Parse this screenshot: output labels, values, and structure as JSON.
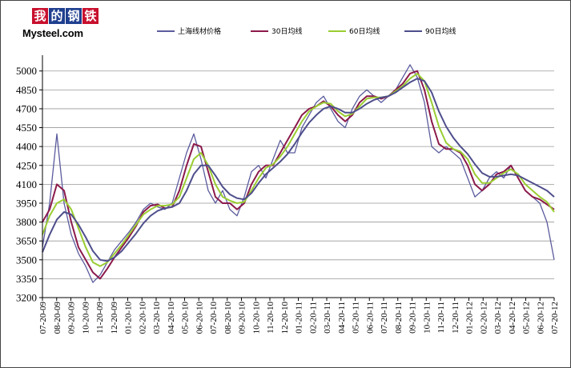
{
  "logo": {
    "chars": [
      "我",
      "的",
      "钢",
      "铁"
    ],
    "colors": [
      "#c8102e",
      "#1f3f8f",
      "#1f3f8f",
      "#c8102e"
    ],
    "brand": "Mysteel.com"
  },
  "chart_data": {
    "type": "line",
    "title": "",
    "xlabel": "",
    "ylabel": "",
    "ylim": [
      3200,
      5100
    ],
    "yticks": [
      3200,
      3350,
      3500,
      3650,
      3800,
      3950,
      4100,
      4250,
      4400,
      4550,
      4700,
      4850,
      5000
    ],
    "xticks": [
      "07-20-09",
      "08-20-09",
      "09-20-09",
      "10-20-09",
      "11-20-09",
      "12-20-09",
      "01-20-10",
      "02-20-10",
      "03-20-10",
      "04-20-10",
      "05-20-10",
      "06-20-10",
      "07-20-10",
      "08-20-10",
      "09-20-10",
      "10-20-10",
      "11-20-10",
      "12-20-10",
      "01-20-11",
      "02-20-11",
      "03-20-11",
      "04-20-11",
      "05-20-11",
      "06-20-11",
      "07-20-11",
      "08-20-11",
      "09-20-11",
      "10-20-11",
      "11-20-11",
      "12-20-11",
      "01-20-12",
      "02-20-12",
      "03-20-12",
      "04-20-12",
      "05-20-12",
      "06-20-12",
      "07-20-12"
    ],
    "grid": true,
    "legend_position": "top",
    "series": [
      {
        "name": "上海线材价格",
        "color": "#5b5b9e",
        "values": [
          3600,
          3950,
          4500,
          3950,
          3700,
          3550,
          3450,
          3320,
          3380,
          3480,
          3580,
          3650,
          3720,
          3800,
          3900,
          3950,
          3920,
          3900,
          3950,
          4150,
          4350,
          4500,
          4300,
          4050,
          3950,
          4050,
          3900,
          3850,
          4000,
          4200,
          4250,
          4150,
          4300,
          4450,
          4350,
          4350,
          4550,
          4650,
          4750,
          4800,
          4700,
          4600,
          4550,
          4700,
          4800,
          4850,
          4800,
          4750,
          4800,
          4850,
          4950,
          5050,
          4950,
          4750,
          4400,
          4350,
          4400,
          4350,
          4300,
          4150,
          4000,
          4050,
          4150,
          4200,
          4150,
          4250,
          4150,
          4050,
          4000,
          3950,
          3800,
          3500
        ]
      },
      {
        "name": "30日均线",
        "color": "#8b1a4b",
        "values": [
          3800,
          3900,
          4100,
          4050,
          3800,
          3600,
          3500,
          3400,
          3350,
          3430,
          3520,
          3600,
          3680,
          3770,
          3880,
          3930,
          3940,
          3910,
          3920,
          4050,
          4250,
          4420,
          4400,
          4200,
          4000,
          3950,
          3950,
          3900,
          3950,
          4100,
          4200,
          4250,
          4250,
          4350,
          4450,
          4550,
          4650,
          4700,
          4720,
          4760,
          4720,
          4650,
          4600,
          4650,
          4750,
          4800,
          4800,
          4780,
          4800,
          4850,
          4900,
          4980,
          5000,
          4850,
          4600,
          4420,
          4380,
          4380,
          4350,
          4250,
          4100,
          4050,
          4100,
          4180,
          4200,
          4250,
          4150,
          4050,
          4000,
          3980,
          3940,
          3900
        ]
      },
      {
        "name": "60日均线",
        "color": "#9acd32",
        "values": [
          3700,
          3850,
          3950,
          3980,
          3900,
          3750,
          3600,
          3480,
          3450,
          3480,
          3550,
          3620,
          3700,
          3780,
          3860,
          3900,
          3930,
          3930,
          3940,
          4000,
          4150,
          4300,
          4350,
          4250,
          4100,
          4000,
          3970,
          3950,
          3960,
          4050,
          4150,
          4230,
          4260,
          4320,
          4400,
          4500,
          4600,
          4680,
          4720,
          4750,
          4740,
          4680,
          4640,
          4660,
          4720,
          4780,
          4790,
          4790,
          4800,
          4840,
          4880,
          4940,
          4980,
          4920,
          4750,
          4560,
          4430,
          4380,
          4360,
          4300,
          4180,
          4110,
          4110,
          4150,
          4190,
          4220,
          4180,
          4100,
          4050,
          4000,
          3960,
          3880
        ]
      },
      {
        "name": "90日均线",
        "color": "#4e4e8c",
        "values": [
          3560,
          3700,
          3820,
          3880,
          3860,
          3780,
          3680,
          3570,
          3500,
          3490,
          3520,
          3570,
          3640,
          3710,
          3790,
          3850,
          3890,
          3910,
          3920,
          3950,
          4050,
          4180,
          4250,
          4250,
          4170,
          4080,
          4020,
          3990,
          3980,
          4030,
          4110,
          4180,
          4230,
          4280,
          4340,
          4420,
          4510,
          4590,
          4650,
          4700,
          4720,
          4700,
          4670,
          4670,
          4700,
          4740,
          4770,
          4790,
          4800,
          4830,
          4870,
          4910,
          4940,
          4920,
          4830,
          4680,
          4560,
          4470,
          4400,
          4340,
          4260,
          4190,
          4160,
          4160,
          4170,
          4180,
          4170,
          4140,
          4110,
          4080,
          4050,
          4000
        ]
      }
    ]
  }
}
